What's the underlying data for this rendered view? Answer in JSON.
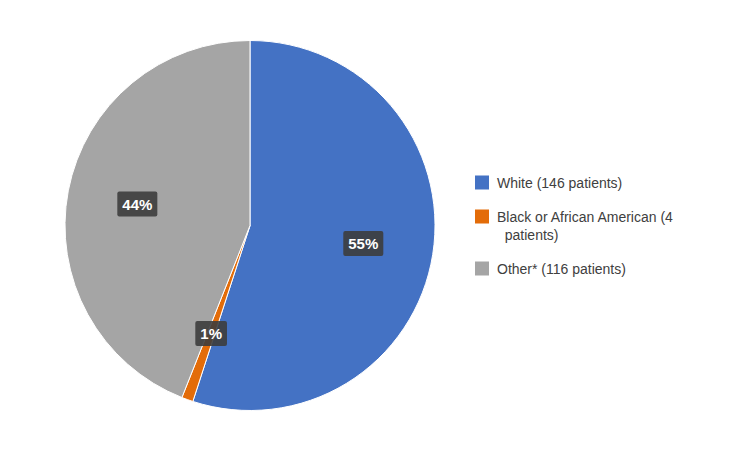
{
  "chart_data": {
    "type": "pie",
    "categories": [
      "White (146 patients)",
      "Black or African American (4\n  patients)",
      "Other* (116 patients)"
    ],
    "values": [
      55,
      1,
      44
    ],
    "value_labels": [
      "55%",
      "1%",
      "44%"
    ],
    "colors": [
      "#4472C4",
      "#E36C09",
      "#A5A5A5"
    ],
    "data_labels": true,
    "legend": "right"
  }
}
